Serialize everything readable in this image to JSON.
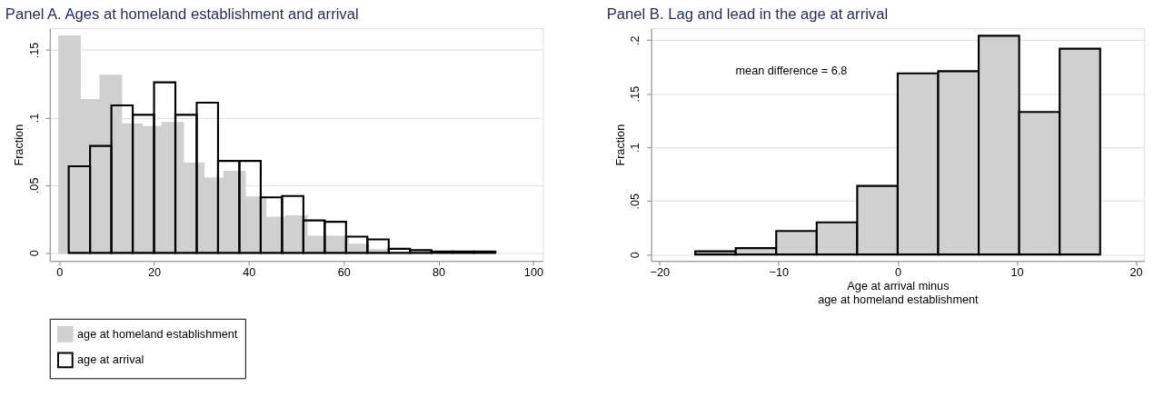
{
  "chart_data": [
    {
      "type": "histogram",
      "title": "Panel A. Ages at homeland establishment and arrival",
      "ylabel": "Fraction",
      "bins": [
        0,
        4.35,
        8.7,
        13.05,
        17.4,
        21.75,
        26.1,
        30.45,
        34.8,
        39.15,
        43.5,
        47.85,
        52.2,
        56.55,
        60.9,
        65.25,
        69.6,
        73.95
      ],
      "series": [
        {
          "name": "age at homeland establishment",
          "color": "#d0d0d0",
          "values": [
            0.16,
            0.113,
            0.131,
            0.095,
            0.093,
            0.096,
            0.066,
            0.055,
            0.06,
            0.041,
            0.026,
            0.027,
            0.012,
            0.012,
            0.006,
            0.002,
            null
          ]
        },
        {
          "name": "age at arrival",
          "color": "#000000",
          "bins": [
            2,
            6.5,
            11,
            15.5,
            20,
            24.5,
            29,
            33.5,
            38,
            42.5,
            47,
            51.5,
            56,
            60.5,
            65,
            69.5,
            74,
            78.5,
            83,
            87.5,
            92
          ],
          "values": [
            0.064,
            0.079,
            0.109,
            0.102,
            0.126,
            0.102,
            0.111,
            0.068,
            0.068,
            0.041,
            0.042,
            0.024,
            0.023,
            0.012,
            0.01,
            0.003,
            0.002,
            0.001,
            0.001,
            0.001
          ]
        }
      ],
      "xlim": [
        -2,
        102
      ],
      "xticks": [
        0,
        20,
        40,
        60,
        80,
        100
      ],
      "ylim": [
        -0.006,
        0.166
      ],
      "yticks": [
        {
          "value": 0,
          "label": "0"
        },
        {
          "value": 0.05,
          "label": ".05"
        },
        {
          "value": 0.1,
          "label": ".1"
        },
        {
          "value": 0.15,
          "label": ".15"
        }
      ],
      "grid": "y",
      "legend": "bottom"
    },
    {
      "type": "histogram",
      "title": "Panel B. Lag and lead in the age at arrival",
      "ylabel": "Fraction",
      "xlabel": "Age at arrival minus\nage at homeland establishment",
      "bins": [
        -17,
        -13.6,
        -10.2,
        -6.8,
        -3.4,
        0,
        3.4,
        6.8,
        10.2,
        13.6,
        17
      ],
      "values": [
        0.003,
        0.006,
        0.022,
        0.03,
        0.064,
        0.169,
        0.171,
        0.204,
        0.133,
        0.192
      ],
      "color": "#d0d0d0",
      "xlim": [
        -20.7,
        20.7
      ],
      "xticks": [
        {
          "value": -20,
          "label": "−20"
        },
        {
          "value": -10,
          "label": "−10"
        },
        0,
        10,
        20
      ],
      "ylim": [
        -0.006,
        0.211
      ],
      "yticks": [
        {
          "value": 0,
          "label": "0"
        },
        {
          "value": 0.05,
          "label": ".05"
        },
        {
          "value": 0.1,
          "label": ".1"
        },
        {
          "value": 0.15,
          "label": ".15"
        },
        {
          "value": 0.2,
          "label": ".2"
        }
      ],
      "grid": "y",
      "annotations": [
        "mean difference = 6.8"
      ]
    }
  ]
}
